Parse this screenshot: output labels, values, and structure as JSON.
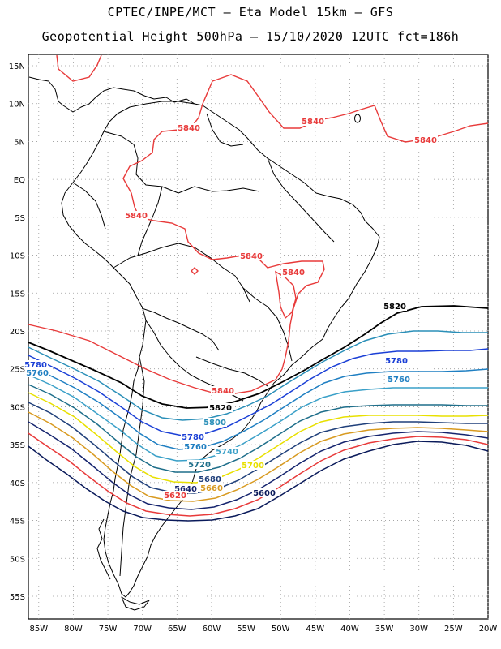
{
  "title": {
    "line1": "CPTEC/INPE/MCT –  Eta Model 15km – GFS",
    "line2": "Geopotential Height 500hPa – 15/10/2020 12UTC fct=186h"
  },
  "axes": {
    "lat_labels": [
      "15N",
      "10N",
      "5N",
      "EQ",
      "5S",
      "10S",
      "15S",
      "20S",
      "25S",
      "30S",
      "35S",
      "40S",
      "45S",
      "50S",
      "55S"
    ],
    "lon_labels": [
      "85W",
      "80W",
      "75W",
      "70W",
      "65W",
      "60W",
      "55W",
      "50W",
      "45W",
      "40W",
      "35W",
      "30W",
      "25W",
      "20W"
    ],
    "lat_range": [
      -58,
      16.5
    ],
    "lon_range": [
      -86.5,
      -20
    ]
  },
  "contour_labels": [
    {
      "text": "5840",
      "color": "#e83a3a"
    },
    {
      "text": "5840",
      "color": "#e83a3a"
    },
    {
      "text": "5840",
      "color": "#e83a3a"
    },
    {
      "text": "5840",
      "color": "#e83a3a"
    },
    {
      "text": "5840",
      "color": "#e83a3a"
    },
    {
      "text": "5840",
      "color": "#e83a3a"
    },
    {
      "text": "5840",
      "color": "#e83a3a"
    },
    {
      "text": "5820",
      "color": "#000000"
    },
    {
      "text": "5820",
      "color": "#000000"
    },
    {
      "text": "5780",
      "color": "#1a3fd6"
    },
    {
      "text": "5780",
      "color": "#1a3fd6"
    },
    {
      "text": "5780",
      "color": "#1a3fd6"
    },
    {
      "text": "5760",
      "color": "#1f7fc2"
    },
    {
      "text": "5760",
      "color": "#1f7fc2"
    },
    {
      "text": "5760",
      "color": "#1f7fc2"
    },
    {
      "text": "5800",
      "color": "#2a8fb8"
    },
    {
      "text": "5740",
      "color": "#3aa0c8"
    },
    {
      "text": "5720",
      "color": "#1e6e8a"
    },
    {
      "text": "5700",
      "color": "#e8e000"
    },
    {
      "text": "5680",
      "color": "#1f3f7a"
    },
    {
      "text": "5660",
      "color": "#d89a20"
    },
    {
      "text": "5640",
      "color": "#15246e"
    },
    {
      "text": "5620",
      "color": "#e83a3a"
    },
    {
      "text": "5600",
      "color": "#0a1a5a"
    }
  ],
  "colors": {
    "c5840": "#e83a3a",
    "c5820": "#000000",
    "c5800": "#2a8fb8",
    "c5780": "#1a3fd6",
    "c5760": "#1f7fc2",
    "c5740": "#3aa0c8",
    "c5720": "#1e6e8a",
    "c5700": "#e8e000",
    "c5680": "#1f3f7a",
    "c5660": "#d89a20",
    "c5640": "#15246e",
    "c5620": "#e83a3a",
    "c5600": "#0a1a5a"
  }
}
